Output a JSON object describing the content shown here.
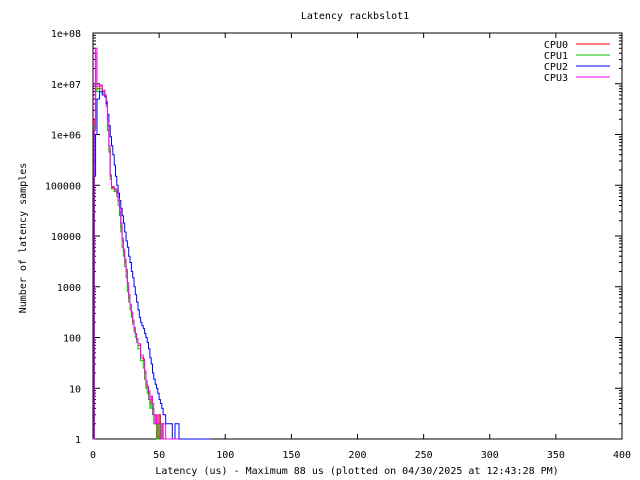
{
  "chart_data": {
    "type": "line",
    "title": "Latency rackbslot1",
    "xlabel": "Latency (us) - Maximum 88 us (plotted on 04/30/2025 at 12:43:28 PM)",
    "ylabel": "Number of latency samples",
    "xlim": [
      0,
      400
    ],
    "ylim": [
      1,
      100000000
    ],
    "yscale": "log",
    "x_ticks": [
      "0",
      "50",
      "100",
      "150",
      "200",
      "250",
      "300",
      "350",
      "400"
    ],
    "y_ticks": [
      "1",
      "10",
      "100",
      "1000",
      "10000",
      "100000",
      "1e+06",
      "1e+07",
      "1e+08"
    ],
    "legend_position": "top-right",
    "series": [
      {
        "name": "CPU0",
        "color": "#ff0000",
        "points": [
          [
            0,
            1
          ],
          [
            1,
            2000000
          ],
          [
            2,
            40000000
          ],
          [
            3,
            8000000
          ],
          [
            5,
            9000000
          ],
          [
            7,
            7000000
          ],
          [
            9,
            6000000
          ],
          [
            10,
            4000000
          ],
          [
            11,
            1500000
          ],
          [
            12,
            500000
          ],
          [
            13,
            150000
          ],
          [
            14,
            90000
          ],
          [
            16,
            80000
          ],
          [
            18,
            70000
          ],
          [
            19,
            50000
          ],
          [
            20,
            30000
          ],
          [
            21,
            15000
          ],
          [
            22,
            8000
          ],
          [
            23,
            5000
          ],
          [
            24,
            3000
          ],
          [
            25,
            2000
          ],
          [
            26,
            1000
          ],
          [
            27,
            600
          ],
          [
            28,
            400
          ],
          [
            29,
            300
          ],
          [
            30,
            200
          ],
          [
            31,
            150
          ],
          [
            32,
            120
          ],
          [
            33,
            90
          ],
          [
            34,
            70
          ],
          [
            36,
            40
          ],
          [
            38,
            35
          ],
          [
            39,
            20
          ],
          [
            40,
            12
          ],
          [
            41,
            10
          ],
          [
            42,
            8
          ],
          [
            43,
            5
          ],
          [
            44,
            6
          ],
          [
            45,
            4
          ],
          [
            46,
            3
          ],
          [
            47,
            2
          ],
          [
            48,
            2
          ],
          [
            49,
            1
          ],
          [
            50,
            3
          ],
          [
            51,
            1
          ],
          [
            52,
            2
          ],
          [
            53,
            1
          ],
          [
            55,
            1
          ],
          [
            57,
            1
          ],
          [
            60,
            1
          ],
          [
            63,
            1
          ],
          [
            66,
            1
          ],
          [
            70,
            1
          ]
        ]
      },
      {
        "name": "CPU1",
        "color": "#00c000",
        "points": [
          [
            0,
            1
          ],
          [
            1,
            1500000
          ],
          [
            2,
            35000000
          ],
          [
            3,
            7000000
          ],
          [
            5,
            8000000
          ],
          [
            7,
            6500000
          ],
          [
            9,
            5500000
          ],
          [
            10,
            3500000
          ],
          [
            11,
            1200000
          ],
          [
            12,
            450000
          ],
          [
            13,
            130000
          ],
          [
            14,
            85000
          ],
          [
            16,
            75000
          ],
          [
            18,
            60000
          ],
          [
            19,
            40000
          ],
          [
            20,
            25000
          ],
          [
            21,
            12000
          ],
          [
            22,
            6000
          ],
          [
            23,
            4000
          ],
          [
            24,
            2500
          ],
          [
            25,
            1500
          ],
          [
            26,
            800
          ],
          [
            27,
            500
          ],
          [
            28,
            350
          ],
          [
            29,
            250
          ],
          [
            30,
            180
          ],
          [
            31,
            130
          ],
          [
            32,
            100
          ],
          [
            33,
            80
          ],
          [
            34,
            60
          ],
          [
            36,
            35
          ],
          [
            38,
            25
          ],
          [
            39,
            15
          ],
          [
            40,
            10
          ],
          [
            41,
            8
          ],
          [
            42,
            6
          ],
          [
            43,
            4
          ],
          [
            44,
            5
          ],
          [
            45,
            3
          ],
          [
            46,
            2
          ],
          [
            47,
            2
          ],
          [
            48,
            1
          ],
          [
            50,
            2
          ],
          [
            52,
            1
          ],
          [
            54,
            1
          ],
          [
            57,
            1
          ],
          [
            62,
            1
          ],
          [
            67,
            1
          ]
        ]
      },
      {
        "name": "CPU2",
        "color": "#0000ff",
        "points": [
          [
            0,
            1
          ],
          [
            1,
            150000
          ],
          [
            2,
            1000000
          ],
          [
            3,
            5000000
          ],
          [
            5,
            7000000
          ],
          [
            7,
            6000000
          ],
          [
            9,
            5500000
          ],
          [
            10,
            4000000
          ],
          [
            11,
            2500000
          ],
          [
            12,
            1500000
          ],
          [
            13,
            900000
          ],
          [
            14,
            600000
          ],
          [
            15,
            400000
          ],
          [
            16,
            250000
          ],
          [
            17,
            150000
          ],
          [
            18,
            100000
          ],
          [
            19,
            70000
          ],
          [
            20,
            50000
          ],
          [
            21,
            35000
          ],
          [
            22,
            25000
          ],
          [
            23,
            18000
          ],
          [
            24,
            12000
          ],
          [
            25,
            8000
          ],
          [
            26,
            6000
          ],
          [
            27,
            4000
          ],
          [
            28,
            3000
          ],
          [
            29,
            2000
          ],
          [
            30,
            1500
          ],
          [
            31,
            1000
          ],
          [
            32,
            700
          ],
          [
            33,
            500
          ],
          [
            34,
            350
          ],
          [
            35,
            250
          ],
          [
            36,
            200
          ],
          [
            37,
            170
          ],
          [
            38,
            150
          ],
          [
            39,
            120
          ],
          [
            40,
            100
          ],
          [
            41,
            80
          ],
          [
            42,
            60
          ],
          [
            43,
            40
          ],
          [
            44,
            30
          ],
          [
            45,
            20
          ],
          [
            46,
            15
          ],
          [
            47,
            12
          ],
          [
            48,
            10
          ],
          [
            49,
            8
          ],
          [
            50,
            6
          ],
          [
            51,
            5
          ],
          [
            52,
            4
          ],
          [
            53,
            3
          ],
          [
            54,
            3
          ],
          [
            55,
            2
          ],
          [
            56,
            2
          ],
          [
            58,
            2
          ],
          [
            60,
            1
          ],
          [
            62,
            2
          ],
          [
            65,
            1
          ],
          [
            68,
            1
          ],
          [
            72,
            1
          ],
          [
            80,
            1
          ],
          [
            88,
            1
          ]
        ]
      },
      {
        "name": "CPU3",
        "color": "#ff00ff",
        "points": [
          [
            0,
            1
          ],
          [
            1,
            1200000
          ],
          [
            2,
            50000000
          ],
          [
            3,
            9000000
          ],
          [
            5,
            9500000
          ],
          [
            7,
            7500000
          ],
          [
            9,
            6000000
          ],
          [
            10,
            4500000
          ],
          [
            11,
            1800000
          ],
          [
            12,
            600000
          ],
          [
            13,
            160000
          ],
          [
            14,
            95000
          ],
          [
            16,
            85000
          ],
          [
            18,
            70000
          ],
          [
            19,
            55000
          ],
          [
            20,
            35000
          ],
          [
            21,
            18000
          ],
          [
            22,
            9000
          ],
          [
            23,
            5500
          ],
          [
            24,
            3500
          ],
          [
            25,
            2200
          ],
          [
            26,
            1200
          ],
          [
            27,
            700
          ],
          [
            28,
            450
          ],
          [
            29,
            320
          ],
          [
            30,
            220
          ],
          [
            31,
            160
          ],
          [
            32,
            120
          ],
          [
            33,
            95
          ],
          [
            34,
            75
          ],
          [
            36,
            45
          ],
          [
            38,
            38
          ],
          [
            39,
            22
          ],
          [
            40,
            14
          ],
          [
            41,
            11
          ],
          [
            42,
            9
          ],
          [
            43,
            6
          ],
          [
            44,
            7
          ],
          [
            45,
            5
          ],
          [
            46,
            3
          ],
          [
            47,
            2
          ],
          [
            48,
            3
          ],
          [
            49,
            2
          ],
          [
            50,
            2
          ],
          [
            51,
            1
          ],
          [
            53,
            2
          ],
          [
            55,
            1
          ],
          [
            58,
            1
          ],
          [
            61,
            1
          ],
          [
            64,
            1
          ]
        ]
      }
    ]
  }
}
